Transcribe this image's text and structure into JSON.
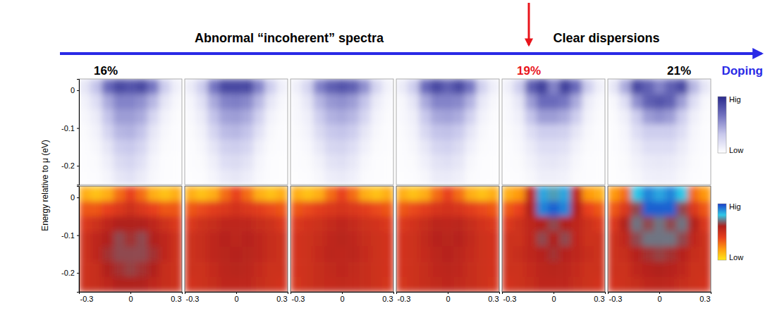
{
  "chart_data": {
    "type": "heatmap",
    "annotations": [
      "Abnormal “incoherent” spectra",
      "Clear dispersions"
    ],
    "x_label": "Doping",
    "y_label": "Energy relative to μ (eV)",
    "xlim": [
      -0.3,
      0.3
    ],
    "xticks": [
      -0.3,
      0,
      0.3
    ],
    "ylim": [
      -0.25,
      0.03
    ],
    "yticks": [
      0,
      -0.1,
      -0.2
    ],
    "x_edges": [
      -0.3,
      -0.2333,
      -0.1667,
      -0.1,
      -0.0333,
      0.0333,
      0.1,
      0.1667,
      0.2333,
      0.3
    ],
    "y_edges": [
      0.03,
      -0.01,
      -0.05,
      -0.09,
      -0.13,
      -0.17,
      -0.21,
      -0.25
    ],
    "panels": [
      {
        "label": "16%",
        "color": "#000000"
      },
      {
        "label": null
      },
      {
        "label": null
      },
      {
        "label": null
      },
      {
        "label": "19%",
        "color": "#e8141b"
      },
      {
        "label": "21%",
        "color": "#000000"
      }
    ],
    "rows": [
      {
        "colorbar": {
          "range": [
            0,
            1
          ],
          "ticks": [
            {
              "value": 1,
              "label": "Hig"
            },
            {
              "value": 0,
              "label": "Low"
            }
          ],
          "colors": [
            "#ffffff",
            "#c8c8ec",
            "#7272c0",
            "#2a2a8c"
          ]
        },
        "z": [
          [
            [
              0.15,
              0.35,
              0.7,
              0.85,
              0.8,
              0.85,
              0.65,
              0.3,
              0.1
            ],
            [
              0.08,
              0.2,
              0.45,
              0.6,
              0.6,
              0.55,
              0.4,
              0.15,
              0.05
            ],
            [
              0.05,
              0.12,
              0.35,
              0.5,
              0.5,
              0.45,
              0.25,
              0.08,
              0.03
            ],
            [
              0.03,
              0.08,
              0.25,
              0.4,
              0.42,
              0.35,
              0.15,
              0.05,
              0.02
            ],
            [
              0.02,
              0.05,
              0.15,
              0.3,
              0.33,
              0.25,
              0.1,
              0.03,
              0.02
            ],
            [
              0.02,
              0.03,
              0.1,
              0.22,
              0.25,
              0.18,
              0.06,
              0.02,
              0.01
            ],
            [
              0.01,
              0.02,
              0.06,
              0.15,
              0.18,
              0.12,
              0.04,
              0.02,
              0.01
            ]
          ],
          [
            [
              0.12,
              0.3,
              0.65,
              0.85,
              0.85,
              0.85,
              0.6,
              0.3,
              0.1
            ],
            [
              0.06,
              0.18,
              0.45,
              0.6,
              0.62,
              0.58,
              0.4,
              0.15,
              0.05
            ],
            [
              0.04,
              0.12,
              0.35,
              0.48,
              0.5,
              0.45,
              0.28,
              0.08,
              0.03
            ],
            [
              0.03,
              0.08,
              0.25,
              0.38,
              0.4,
              0.35,
              0.18,
              0.05,
              0.02
            ],
            [
              0.02,
              0.05,
              0.16,
              0.28,
              0.3,
              0.25,
              0.1,
              0.03,
              0.02
            ],
            [
              0.02,
              0.03,
              0.1,
              0.2,
              0.22,
              0.17,
              0.06,
              0.02,
              0.01
            ],
            [
              0.01,
              0.02,
              0.06,
              0.13,
              0.15,
              0.11,
              0.04,
              0.02,
              0.01
            ]
          ],
          [
            [
              0.1,
              0.25,
              0.6,
              0.75,
              0.8,
              0.75,
              0.55,
              0.25,
              0.08
            ],
            [
              0.05,
              0.15,
              0.4,
              0.52,
              0.55,
              0.5,
              0.35,
              0.12,
              0.04
            ],
            [
              0.04,
              0.1,
              0.3,
              0.42,
              0.45,
              0.4,
              0.25,
              0.07,
              0.03
            ],
            [
              0.03,
              0.07,
              0.22,
              0.33,
              0.35,
              0.3,
              0.15,
              0.05,
              0.02
            ],
            [
              0.02,
              0.04,
              0.14,
              0.24,
              0.26,
              0.2,
              0.09,
              0.03,
              0.02
            ],
            [
              0.02,
              0.03,
              0.08,
              0.17,
              0.19,
              0.14,
              0.05,
              0.02,
              0.01
            ],
            [
              0.01,
              0.02,
              0.05,
              0.11,
              0.13,
              0.09,
              0.03,
              0.02,
              0.01
            ]
          ],
          [
            [
              0.12,
              0.3,
              0.7,
              0.85,
              0.75,
              0.85,
              0.65,
              0.28,
              0.1
            ],
            [
              0.05,
              0.16,
              0.45,
              0.6,
              0.6,
              0.58,
              0.42,
              0.14,
              0.05
            ],
            [
              0.04,
              0.1,
              0.33,
              0.46,
              0.48,
              0.44,
              0.28,
              0.08,
              0.03
            ],
            [
              0.03,
              0.07,
              0.23,
              0.35,
              0.36,
              0.32,
              0.16,
              0.05,
              0.02
            ],
            [
              0.02,
              0.05,
              0.14,
              0.25,
              0.27,
              0.22,
              0.09,
              0.03,
              0.02
            ],
            [
              0.02,
              0.03,
              0.09,
              0.17,
              0.19,
              0.15,
              0.05,
              0.02,
              0.01
            ],
            [
              0.01,
              0.02,
              0.05,
              0.12,
              0.13,
              0.1,
              0.03,
              0.02,
              0.01
            ]
          ],
          [
            [
              0.1,
              0.3,
              0.75,
              0.9,
              0.6,
              0.9,
              0.7,
              0.3,
              0.1
            ],
            [
              0.05,
              0.15,
              0.5,
              0.7,
              0.7,
              0.65,
              0.45,
              0.12,
              0.04
            ],
            [
              0.04,
              0.1,
              0.35,
              0.5,
              0.5,
              0.45,
              0.3,
              0.08,
              0.03
            ],
            [
              0.03,
              0.06,
              0.2,
              0.3,
              0.3,
              0.28,
              0.15,
              0.05,
              0.02
            ],
            [
              0.02,
              0.04,
              0.12,
              0.2,
              0.2,
              0.18,
              0.08,
              0.03,
              0.02
            ],
            [
              0.02,
              0.03,
              0.08,
              0.14,
              0.15,
              0.12,
              0.05,
              0.02,
              0.01
            ],
            [
              0.01,
              0.02,
              0.05,
              0.1,
              0.1,
              0.08,
              0.03,
              0.02,
              0.01
            ]
          ],
          [
            [
              0.15,
              0.45,
              0.85,
              0.75,
              0.6,
              0.75,
              0.85,
              0.4,
              0.15
            ],
            [
              0.05,
              0.2,
              0.55,
              0.75,
              0.8,
              0.75,
              0.5,
              0.2,
              0.05
            ],
            [
              0.03,
              0.1,
              0.3,
              0.5,
              0.55,
              0.5,
              0.3,
              0.1,
              0.03
            ],
            [
              0.02,
              0.06,
              0.2,
              0.3,
              0.3,
              0.3,
              0.2,
              0.06,
              0.02
            ],
            [
              0.02,
              0.04,
              0.12,
              0.2,
              0.2,
              0.2,
              0.12,
              0.04,
              0.02
            ],
            [
              0.01,
              0.03,
              0.08,
              0.13,
              0.14,
              0.13,
              0.08,
              0.03,
              0.01
            ],
            [
              0.01,
              0.02,
              0.05,
              0.09,
              0.1,
              0.09,
              0.05,
              0.02,
              0.01
            ]
          ]
        ]
      },
      {
        "colorbar": {
          "range": [
            0,
            1
          ],
          "ticks": [
            {
              "value": 1,
              "label": "Hig"
            },
            {
              "value": 0,
              "label": "Low"
            }
          ],
          "colors": [
            "#ffe81a",
            "#ff9a10",
            "#e8401c",
            "#b0201c",
            "#2ec8e8",
            "#1a3ec8"
          ]
        },
        "z": [
          [
            [
              0.15,
              0.1,
              0.15,
              0.3,
              0.4,
              0.3,
              0.15,
              0.1,
              0.15
            ],
            [
              0.35,
              0.35,
              0.4,
              0.45,
              0.5,
              0.45,
              0.4,
              0.35,
              0.35
            ],
            [
              0.45,
              0.5,
              0.55,
              0.6,
              0.6,
              0.6,
              0.55,
              0.5,
              0.45
            ],
            [
              0.5,
              0.55,
              0.6,
              0.65,
              0.62,
              0.65,
              0.6,
              0.55,
              0.5
            ],
            [
              0.5,
              0.55,
              0.62,
              0.65,
              0.65,
              0.65,
              0.62,
              0.55,
              0.5
            ],
            [
              0.5,
              0.52,
              0.6,
              0.62,
              0.64,
              0.62,
              0.6,
              0.52,
              0.5
            ],
            [
              0.5,
              0.52,
              0.55,
              0.6,
              0.6,
              0.6,
              0.55,
              0.52,
              0.5
            ]
          ],
          [
            [
              0.15,
              0.1,
              0.15,
              0.3,
              0.4,
              0.3,
              0.15,
              0.1,
              0.15
            ],
            [
              0.35,
              0.38,
              0.42,
              0.45,
              0.48,
              0.45,
              0.42,
              0.38,
              0.35
            ],
            [
              0.45,
              0.5,
              0.52,
              0.55,
              0.55,
              0.55,
              0.52,
              0.5,
              0.45
            ],
            [
              0.5,
              0.52,
              0.55,
              0.58,
              0.56,
              0.58,
              0.55,
              0.52,
              0.5
            ],
            [
              0.5,
              0.52,
              0.55,
              0.57,
              0.58,
              0.57,
              0.55,
              0.52,
              0.5
            ],
            [
              0.5,
              0.5,
              0.53,
              0.56,
              0.57,
              0.56,
              0.53,
              0.5,
              0.5
            ],
            [
              0.48,
              0.5,
              0.52,
              0.55,
              0.55,
              0.55,
              0.52,
              0.5,
              0.48
            ]
          ],
          [
            [
              0.15,
              0.1,
              0.15,
              0.3,
              0.4,
              0.3,
              0.15,
              0.1,
              0.15
            ],
            [
              0.35,
              0.38,
              0.42,
              0.45,
              0.47,
              0.45,
              0.42,
              0.38,
              0.35
            ],
            [
              0.45,
              0.48,
              0.5,
              0.53,
              0.55,
              0.53,
              0.5,
              0.48,
              0.45
            ],
            [
              0.48,
              0.5,
              0.52,
              0.55,
              0.57,
              0.55,
              0.52,
              0.5,
              0.48
            ],
            [
              0.48,
              0.5,
              0.53,
              0.56,
              0.55,
              0.56,
              0.53,
              0.5,
              0.48
            ],
            [
              0.48,
              0.5,
              0.52,
              0.54,
              0.55,
              0.54,
              0.52,
              0.5,
              0.48
            ],
            [
              0.47,
              0.5,
              0.52,
              0.53,
              0.54,
              0.53,
              0.52,
              0.5,
              0.47
            ]
          ],
          [
            [
              0.15,
              0.1,
              0.15,
              0.3,
              0.4,
              0.3,
              0.15,
              0.1,
              0.15
            ],
            [
              0.35,
              0.38,
              0.42,
              0.46,
              0.48,
              0.46,
              0.42,
              0.38,
              0.35
            ],
            [
              0.45,
              0.48,
              0.52,
              0.56,
              0.55,
              0.56,
              0.52,
              0.48,
              0.45
            ],
            [
              0.48,
              0.5,
              0.54,
              0.58,
              0.57,
              0.58,
              0.54,
              0.5,
              0.48
            ],
            [
              0.48,
              0.5,
              0.53,
              0.56,
              0.58,
              0.56,
              0.53,
              0.5,
              0.48
            ],
            [
              0.48,
              0.5,
              0.52,
              0.55,
              0.56,
              0.55,
              0.52,
              0.5,
              0.48
            ],
            [
              0.47,
              0.5,
              0.52,
              0.54,
              0.55,
              0.54,
              0.52,
              0.5,
              0.47
            ]
          ],
          [
            [
              0.15,
              0.2,
              0.55,
              0.85,
              0.75,
              0.85,
              0.55,
              0.2,
              0.15
            ],
            [
              0.35,
              0.4,
              0.6,
              0.9,
              0.95,
              0.9,
              0.6,
              0.4,
              0.35
            ],
            [
              0.45,
              0.5,
              0.55,
              0.6,
              0.65,
              0.6,
              0.55,
              0.5,
              0.45
            ],
            [
              0.5,
              0.5,
              0.55,
              0.65,
              0.6,
              0.65,
              0.55,
              0.5,
              0.5
            ],
            [
              0.5,
              0.52,
              0.55,
              0.58,
              0.62,
              0.58,
              0.55,
              0.52,
              0.5
            ],
            [
              0.5,
              0.5,
              0.53,
              0.56,
              0.57,
              0.56,
              0.53,
              0.5,
              0.5
            ],
            [
              0.48,
              0.5,
              0.52,
              0.55,
              0.55,
              0.55,
              0.52,
              0.5,
              0.48
            ]
          ],
          [
            [
              0.2,
              0.3,
              0.8,
              0.9,
              0.85,
              0.9,
              0.8,
              0.3,
              0.2
            ],
            [
              0.35,
              0.45,
              0.65,
              0.95,
              0.95,
              0.95,
              0.65,
              0.45,
              0.35
            ],
            [
              0.45,
              0.6,
              0.7,
              0.65,
              0.7,
              0.65,
              0.7,
              0.6,
              0.45
            ],
            [
              0.5,
              0.55,
              0.65,
              0.7,
              0.7,
              0.7,
              0.65,
              0.55,
              0.5
            ],
            [
              0.5,
              0.52,
              0.58,
              0.62,
              0.64,
              0.62,
              0.58,
              0.52,
              0.5
            ],
            [
              0.5,
              0.5,
              0.55,
              0.58,
              0.6,
              0.58,
              0.55,
              0.5,
              0.5
            ],
            [
              0.48,
              0.5,
              0.52,
              0.55,
              0.56,
              0.55,
              0.52,
              0.5,
              0.48
            ]
          ]
        ]
      }
    ]
  }
}
